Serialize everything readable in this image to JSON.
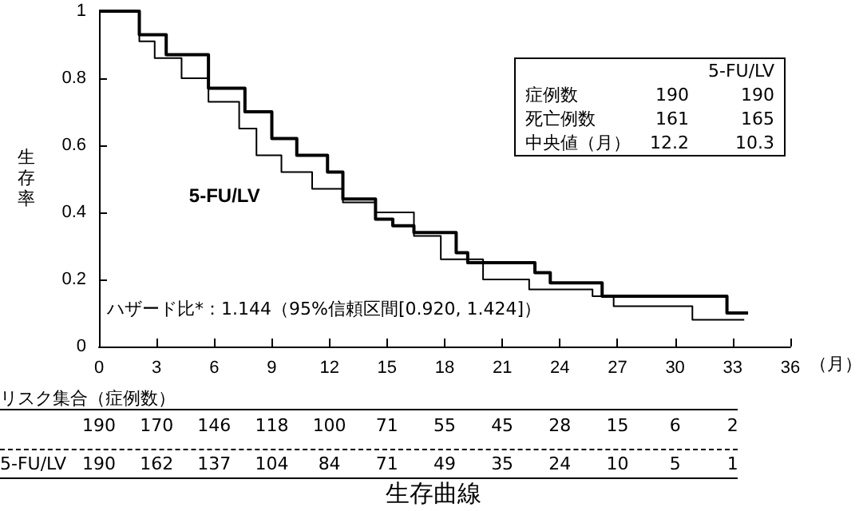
{
  "chart_data": {
    "type": "step",
    "title": "生存曲線",
    "ylabel": "生存率",
    "xlabel": "（月）",
    "xlim": [
      0,
      36
    ],
    "xticks": [
      0,
      3,
      6,
      9,
      12,
      15,
      18,
      21,
      24,
      27,
      30,
      33,
      36
    ],
    "ylim": [
      0,
      1
    ],
    "yticks": [
      0,
      0.2,
      0.4,
      0.6,
      0.8,
      1
    ],
    "grid": false,
    "legend": false,
    "marker": "none",
    "line_style": "solid",
    "series": [
      {
        "color": "#000000",
        "x": [
          0,
          2.1,
          3.5,
          5.7,
          7.6,
          9.0,
          10.3,
          11.9,
          12.7,
          14.4,
          15.3,
          16.4,
          18.6,
          19.2,
          22.7,
          23.5,
          26.2,
          28.2,
          32.7,
          33.8
        ],
        "values": [
          1,
          0.93,
          0.87,
          0.77,
          0.7,
          0.62,
          0.57,
          0.52,
          0.44,
          0.38,
          0.36,
          0.34,
          0.28,
          0.25,
          0.22,
          0.19,
          0.15,
          0.15,
          0.1,
          0.1
        ]
      },
      {
        "name": "5-FU/LV",
        "color": "#000000",
        "x": [
          0,
          2.1,
          2.9,
          4.3,
          5.7,
          7.3,
          8.2,
          9.5,
          11.1,
          12.7,
          14.4,
          16.4,
          17.8,
          20.0,
          22.4,
          25.7,
          26.8,
          30.6,
          30.9,
          33.6
        ],
        "values": [
          1,
          0.91,
          0.86,
          0.8,
          0.73,
          0.65,
          0.57,
          0.52,
          0.47,
          0.43,
          0.4,
          0.33,
          0.26,
          0.2,
          0.17,
          0.15,
          0.12,
          0.12,
          0.08,
          0.08
        ]
      }
    ],
    "annotations": [
      "5-FU/LV",
      "症例数",
      "190",
      "190",
      "死亡例数",
      "161",
      "165",
      "中央値（月）",
      "12.2",
      "10.3",
      "ハザード比*：1.144（95%信頼区間[0.920, 1.424]）",
      "リスク集合（症例数）",
      "190",
      "170",
      "146",
      "118",
      "100",
      "71",
      "55",
      "45",
      "28",
      "15",
      "6",
      "2",
      "5-FU/LV",
      "190",
      "162",
      "137",
      "104",
      "84",
      "71",
      "49",
      "35",
      "24",
      "10",
      "5",
      "1"
    ]
  }
}
